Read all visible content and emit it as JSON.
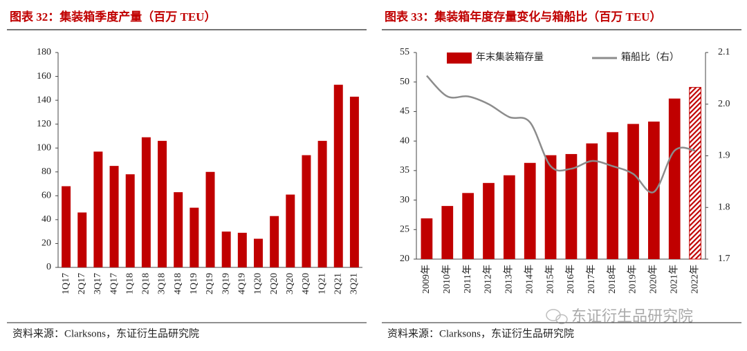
{
  "chart_data": [
    {
      "type": "bar",
      "title": "图表 32：集装箱季度产量（百万 TEU）",
      "categories": [
        "1Q17",
        "2Q17",
        "3Q17",
        "4Q17",
        "1Q18",
        "2Q18",
        "3Q18",
        "4Q18",
        "1Q19",
        "2Q19",
        "3Q19",
        "4Q19",
        "1Q20",
        "2Q20",
        "3Q20",
        "4Q20",
        "1Q21",
        "2Q21",
        "3Q21"
      ],
      "series": [
        {
          "name": "集装箱季度产量",
          "color": "#c00000",
          "values": [
            68,
            46,
            97,
            85,
            78,
            109,
            106,
            63,
            50,
            80,
            30,
            29,
            24,
            43,
            61,
            94,
            106,
            153,
            143
          ]
        }
      ],
      "ylim": [
        0,
        180
      ],
      "yticks": [
        0,
        20,
        40,
        60,
        80,
        100,
        120,
        140,
        160,
        180
      ],
      "legend": false,
      "source": "资料来源：Clarksons，东证衍生品研究院"
    },
    {
      "type": "bar-line",
      "title": "图表 33：集装箱年度存量变化与箱船比（百万 TEU）",
      "categories": [
        "2009年",
        "2010年",
        "2011年",
        "2012年",
        "2013年",
        "2014年",
        "2015年",
        "2016年",
        "2017年",
        "2018年",
        "2019年",
        "2020年",
        "2021年",
        "2022年"
      ],
      "series": [
        {
          "name": "年末集装箱存量",
          "color": "#c00000",
          "type": "bar",
          "hatched_last": true,
          "values": [
            26.9,
            29,
            31.2,
            32.9,
            34.2,
            36.3,
            37.6,
            37.8,
            39.6,
            41.5,
            42.9,
            43.3,
            47.2,
            49.1
          ]
        },
        {
          "name": "箱船比（右）",
          "color": "#8c8c8c",
          "type": "line",
          "axis": "y2",
          "values": [
            2.055,
            2.015,
            2.015,
            2.0,
            1.975,
            1.965,
            1.88,
            1.875,
            1.89,
            1.88,
            1.865,
            1.83,
            1.91,
            1.91
          ]
        }
      ],
      "ylim": [
        20,
        55
      ],
      "yticks": [
        20,
        25,
        30,
        35,
        40,
        45,
        50,
        55
      ],
      "y2lim": [
        1.7,
        2.1
      ],
      "y2ticks": [
        1.7,
        1.8,
        1.9,
        {
          "value": 2.0,
          "label": "2.0"
        },
        2.1
      ],
      "legend": "top",
      "source": "资料来源：Clarksons，东证衍生品研究院"
    }
  ],
  "watermark": "东证衍生品研究院"
}
